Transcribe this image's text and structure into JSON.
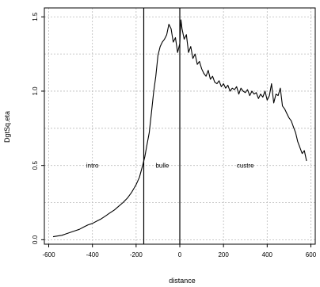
{
  "chart_data": {
    "type": "line",
    "xlabel": "distance",
    "ylabel": "DgtSq.eta",
    "xlim": [
      -620,
      620
    ],
    "ylim": [
      -0.03,
      1.56
    ],
    "xticks": [
      -600,
      -400,
      -200,
      0,
      200,
      400,
      600
    ],
    "xtick_labels": [
      "-600",
      "-400",
      "-200",
      "0",
      "200",
      "400",
      "600"
    ],
    "yticks": [
      0.0,
      0.5,
      1.0,
      1.5
    ],
    "ytick_labels": [
      "0.0",
      "0.5",
      "1.0",
      "1.5"
    ],
    "grid": true,
    "colors": {
      "line": "#000000",
      "grid": "#bbbbbb",
      "frame": "#000000"
    },
    "vlines": [
      -165,
      0
    ],
    "region_labels": [
      {
        "text": "intro",
        "x": -400,
        "y": 0.5
      },
      {
        "text": "bulle",
        "x": -80,
        "y": 0.5
      },
      {
        "text": "custre",
        "x": 300,
        "y": 0.5
      }
    ],
    "series": [
      {
        "x": [
          -580,
          -560,
          -540,
          -520,
          -500,
          -480,
          -460,
          -440,
          -420,
          -400,
          -380,
          -360,
          -340,
          -320,
          -300,
          -280,
          -260,
          -240,
          -220,
          -200,
          -185,
          -170,
          -160,
          -150,
          -140,
          -130,
          -120,
          -110,
          -100,
          -90,
          -80,
          -70,
          -60,
          -50,
          -40,
          -30,
          -20,
          -10,
          0,
          5,
          10,
          20,
          30,
          40,
          50,
          60,
          70,
          80,
          90,
          100,
          110,
          120,
          130,
          140,
          150,
          160,
          170,
          180,
          190,
          200,
          210,
          220,
          230,
          240,
          250,
          260,
          270,
          280,
          290,
          300,
          310,
          320,
          330,
          340,
          350,
          360,
          370,
          380,
          390,
          400,
          410,
          420,
          430,
          440,
          450,
          460,
          470,
          480,
          490,
          500,
          510,
          520,
          530,
          540,
          550,
          560,
          570,
          580
        ],
        "y": [
          0.02,
          0.025,
          0.03,
          0.04,
          0.05,
          0.06,
          0.07,
          0.085,
          0.1,
          0.11,
          0.125,
          0.14,
          0.16,
          0.18,
          0.2,
          0.225,
          0.25,
          0.28,
          0.32,
          0.37,
          0.42,
          0.5,
          0.56,
          0.64,
          0.72,
          0.85,
          0.99,
          1.1,
          1.24,
          1.3,
          1.33,
          1.35,
          1.38,
          1.45,
          1.42,
          1.33,
          1.36,
          1.26,
          1.32,
          1.48,
          1.42,
          1.35,
          1.38,
          1.26,
          1.3,
          1.22,
          1.25,
          1.18,
          1.2,
          1.15,
          1.12,
          1.1,
          1.14,
          1.08,
          1.1,
          1.06,
          1.05,
          1.07,
          1.03,
          1.05,
          1.02,
          1.04,
          1.0,
          1.02,
          1.01,
          1.03,
          0.98,
          1.02,
          1.0,
          0.99,
          1.01,
          0.97,
          1.0,
          0.98,
          0.99,
          0.95,
          0.98,
          0.96,
          1.0,
          0.94,
          0.97,
          1.05,
          0.92,
          0.98,
          0.97,
          1.02,
          0.9,
          0.88,
          0.85,
          0.82,
          0.8,
          0.76,
          0.72,
          0.66,
          0.62,
          0.58,
          0.6,
          0.53
        ]
      }
    ]
  }
}
